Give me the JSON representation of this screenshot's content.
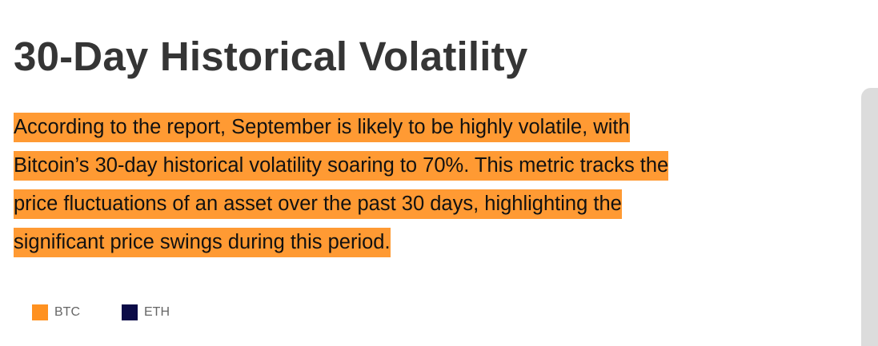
{
  "article": {
    "heading": "30-Day Historical Volatility",
    "paragraph_lines": [
      "According to the report, September is likely to be highly volatile, with",
      "Bitcoin’s 30-day historical volatility soaring to 70%. This metric tracks the",
      "price fluctuations of an asset over the past 30 days, highlighting the",
      "significant price swings during this period."
    ],
    "highlight_color": "#ff9a33"
  },
  "legend": {
    "items": [
      {
        "label": "BTC",
        "color": "#ff9120"
      },
      {
        "label": "ETH",
        "color": "#0b0b47"
      }
    ]
  }
}
